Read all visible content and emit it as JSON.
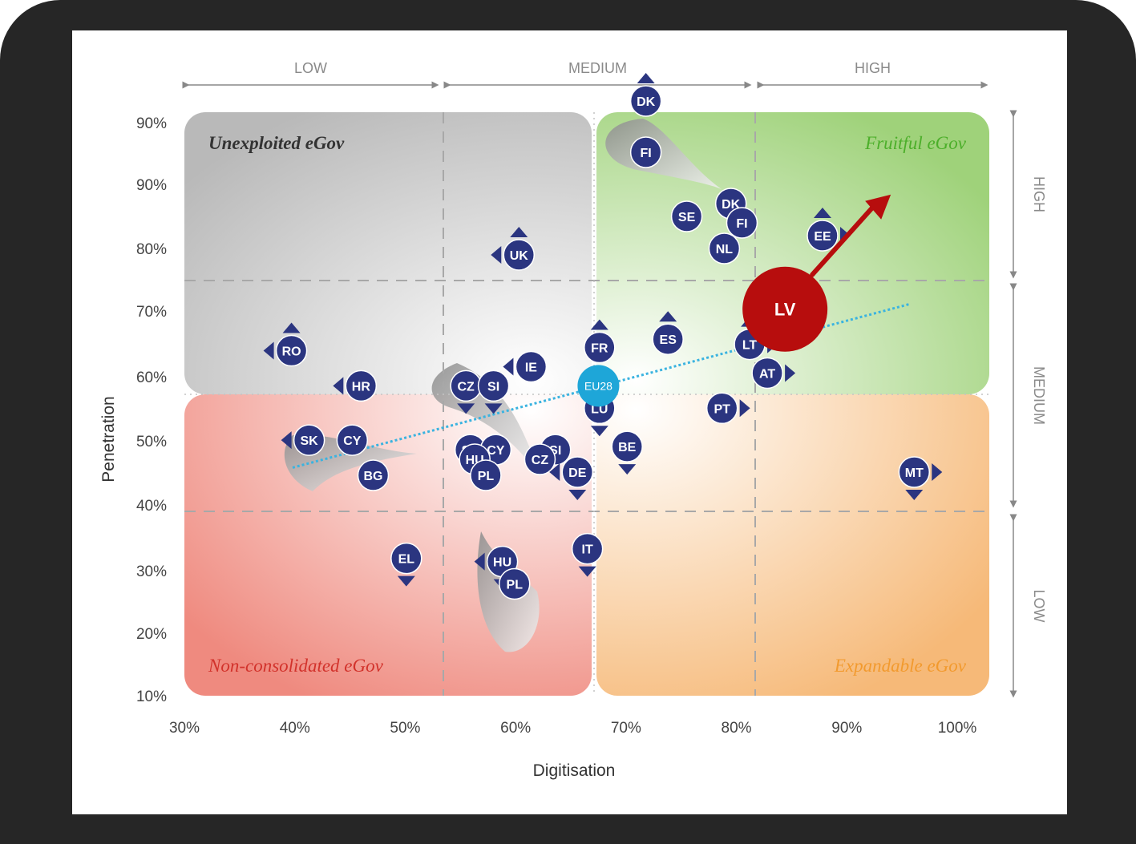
{
  "chart_data": {
    "type": "scatter",
    "xlabel": "Digitisation",
    "ylabel": "Penetration",
    "x_ticks": [
      "30%",
      "40%",
      "50%",
      "60%",
      "70%",
      "80%",
      "90%",
      "100%"
    ],
    "y_ticks": [
      "90%",
      "90%",
      "80%",
      "70%",
      "60%",
      "50%",
      "40%",
      "30%",
      "20%",
      "10%"
    ],
    "xlim": [
      30,
      100
    ],
    "top_bands": [
      "LOW",
      "MEDIUM",
      "HIGH"
    ],
    "right_bands": [
      "HIGH",
      "MEDIUM",
      "LOW"
    ],
    "quadrants": {
      "top_left": "Unexploited eGov",
      "top_right": "Fruitful eGov",
      "bottom_left": "Non-consolidated eGov",
      "bottom_right": "Expandable eGov"
    },
    "colors": {
      "marker": "#2b3580",
      "eu_average": "#1ea6d8",
      "highlight": "#b70d0d",
      "trend": "#3ab3e0",
      "fruitful_text": "#4caf2a",
      "expandable_text": "#f29a2e",
      "nonconsolidated_text": "#d2322b",
      "unexploited_text": "#333333"
    },
    "points": [
      {
        "label": "DK",
        "x": 71.8,
        "y": 91.5,
        "arrows": [
          "up"
        ]
      },
      {
        "label": "FI",
        "x": 71.8,
        "y": 87.5,
        "arrows": []
      },
      {
        "label": "SE",
        "x": 75.5,
        "y": 82.5,
        "arrows": []
      },
      {
        "label": "DK",
        "x": 79.5,
        "y": 83.5,
        "arrows": []
      },
      {
        "label": "FI",
        "x": 80.5,
        "y": 82.0,
        "arrows": []
      },
      {
        "label": "NL",
        "x": 78.9,
        "y": 80.0,
        "arrows": []
      },
      {
        "label": "EE",
        "x": 87.8,
        "y": 81.0,
        "arrows": [
          "up",
          "right"
        ]
      },
      {
        "label": "UK",
        "x": 60.3,
        "y": 79.0,
        "arrows": [
          "up",
          "left"
        ]
      },
      {
        "label": "RO",
        "x": 39.7,
        "y": 64.0,
        "arrows": [
          "up",
          "left"
        ]
      },
      {
        "label": "FR",
        "x": 67.6,
        "y": 64.5,
        "arrows": [
          "up"
        ]
      },
      {
        "label": "ES",
        "x": 73.8,
        "y": 65.8,
        "arrows": [
          "up"
        ]
      },
      {
        "label": "LT",
        "x": 81.2,
        "y": 65.0,
        "arrows": [
          "up",
          "right"
        ]
      },
      {
        "label": "IE",
        "x": 61.4,
        "y": 61.5,
        "arrows": [
          "left"
        ]
      },
      {
        "label": "AT",
        "x": 82.8,
        "y": 60.5,
        "arrows": [
          "right"
        ]
      },
      {
        "label": "HR",
        "x": 46.0,
        "y": 58.5,
        "arrows": [
          "left"
        ]
      },
      {
        "label": "CZ",
        "x": 55.5,
        "y": 58.5,
        "arrows": [
          "down"
        ]
      },
      {
        "label": "SI",
        "x": 58.0,
        "y": 58.5,
        "arrows": [
          "down"
        ]
      },
      {
        "label": "LU",
        "x": 67.6,
        "y": 55.0,
        "arrows": [
          "down"
        ]
      },
      {
        "label": "PT",
        "x": 78.7,
        "y": 55.0,
        "arrows": [
          "right"
        ]
      },
      {
        "label": "SK",
        "x": 41.3,
        "y": 50.0,
        "arrows": [
          "left"
        ]
      },
      {
        "label": "CY",
        "x": 45.2,
        "y": 50.0,
        "arrows": []
      },
      {
        "label": "SK",
        "x": 55.9,
        "y": 48.5,
        "arrows": []
      },
      {
        "label": "CY",
        "x": 58.2,
        "y": 48.5,
        "arrows": []
      },
      {
        "label": "SI",
        "x": 63.6,
        "y": 48.5,
        "arrows": []
      },
      {
        "label": "BE",
        "x": 70.1,
        "y": 49.0,
        "arrows": [
          "down"
        ]
      },
      {
        "label": "HU",
        "x": 56.3,
        "y": 47.0,
        "arrows": []
      },
      {
        "label": "CZ",
        "x": 62.2,
        "y": 47.0,
        "arrows": []
      },
      {
        "label": "BG",
        "x": 47.1,
        "y": 44.5,
        "arrows": []
      },
      {
        "label": "PL",
        "x": 57.3,
        "y": 44.5,
        "arrows": []
      },
      {
        "label": "DE",
        "x": 65.6,
        "y": 45.0,
        "arrows": [
          "left",
          "down"
        ]
      },
      {
        "label": "MT",
        "x": 96.1,
        "y": 45.0,
        "arrows": [
          "right",
          "down"
        ]
      },
      {
        "label": "IT",
        "x": 66.5,
        "y": 33.0,
        "arrows": [
          "down"
        ]
      },
      {
        "label": "EL",
        "x": 50.1,
        "y": 31.5,
        "arrows": [
          "down"
        ]
      },
      {
        "label": "HU",
        "x": 58.8,
        "y": 31.0,
        "arrows": [
          "left",
          "down"
        ]
      },
      {
        "label": "PL",
        "x": 59.9,
        "y": 27.5,
        "arrows": []
      }
    ],
    "eu_average": {
      "label": "EU28",
      "x": 67.5,
      "y": 58.5
    },
    "highlight": {
      "label": "LV",
      "x": 84.4,
      "y": 70.5
    },
    "trend_line": [
      [
        39.8,
        45.7
      ],
      [
        95.7,
        71.3
      ]
    ]
  }
}
